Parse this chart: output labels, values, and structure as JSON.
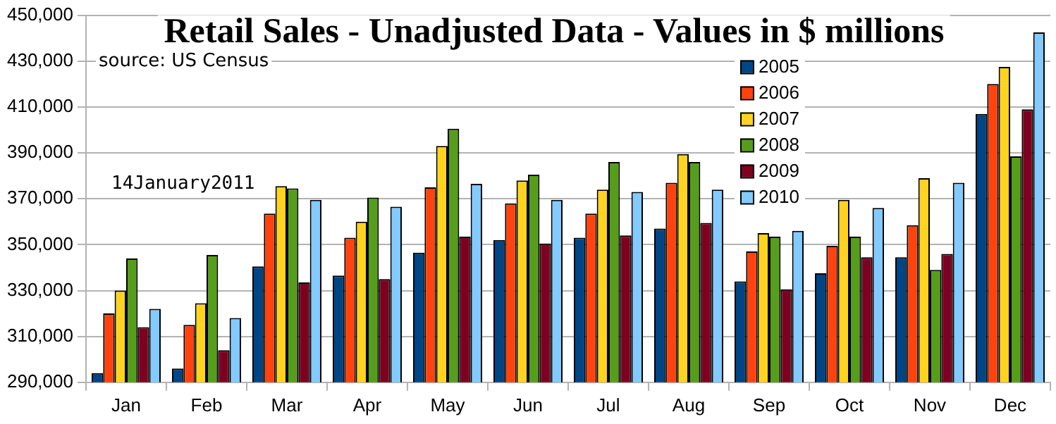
{
  "chart_data": {
    "type": "bar",
    "title": "Retail Sales - Unadjusted Data - Values in $ millions",
    "annotations": [
      "source: US Census",
      "14January2011"
    ],
    "categories": [
      "Jan",
      "Feb",
      "Mar",
      "Apr",
      "May",
      "Jun",
      "Jul",
      "Aug",
      "Sep",
      "Oct",
      "Nov",
      "Dec"
    ],
    "series": [
      {
        "name": "2005",
        "color": "#004586",
        "values": [
          294000,
          296000,
          340500,
          336500,
          346500,
          352000,
          353000,
          357000,
          334000,
          337500,
          344500,
          407000
        ]
      },
      {
        "name": "2006",
        "color": "#ff420e",
        "values": [
          320000,
          315000,
          363500,
          353000,
          375000,
          368000,
          363500,
          377000,
          347000,
          349500,
          358500,
          420000
        ]
      },
      {
        "name": "2007",
        "color": "#ffd320",
        "values": [
          330000,
          324500,
          375500,
          360000,
          393000,
          378000,
          374000,
          389500,
          355000,
          369500,
          379000,
          427500
        ]
      },
      {
        "name": "2008",
        "color": "#579d1c",
        "values": [
          344000,
          345500,
          374500,
          370500,
          400500,
          380500,
          386000,
          386000,
          353500,
          353500,
          339000,
          388500
        ]
      },
      {
        "name": "2009",
        "color": "#7e0021",
        "values": [
          314000,
          304000,
          333500,
          335000,
          353500,
          350500,
          354000,
          359500,
          330500,
          344500,
          346000,
          409000
        ]
      },
      {
        "name": "2010",
        "color": "#83caff",
        "values": [
          322000,
          318000,
          369500,
          366500,
          376500,
          369500,
          373000,
          374000,
          356000,
          366000,
          377000,
          442500
        ]
      }
    ],
    "ylim": [
      290000,
      450000
    ],
    "yticks": [
      {
        "value": 290000,
        "label": "290,000"
      },
      {
        "value": 310000,
        "label": "310,000"
      },
      {
        "value": 330000,
        "label": "330,000"
      },
      {
        "value": 350000,
        "label": "350,000"
      },
      {
        "value": 370000,
        "label": "370,000"
      },
      {
        "value": 390000,
        "label": "390,000"
      },
      {
        "value": 410000,
        "label": "410,000"
      },
      {
        "value": 430000,
        "label": "430,000"
      },
      {
        "value": 450000,
        "label": "450,000"
      }
    ],
    "grid": "y",
    "legend": "top right"
  }
}
